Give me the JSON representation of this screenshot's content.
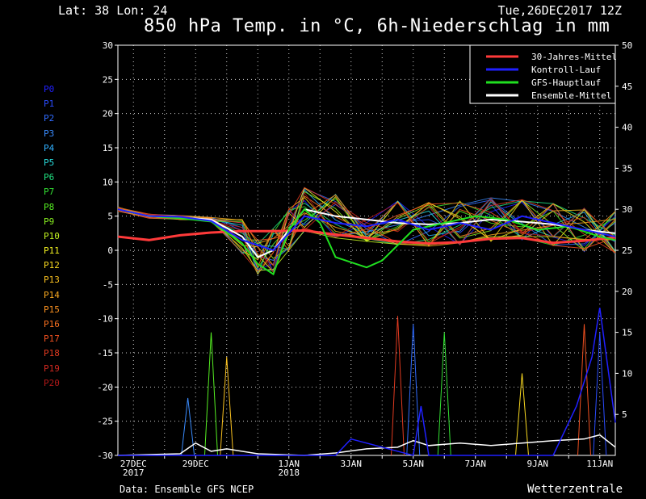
{
  "header": {
    "location": "Lat: 38 Lon: 24",
    "run_time": "Tue,26DEC2017 12Z",
    "title": "850 hPa Temp. in °C, 6h-Niederschlag in mm"
  },
  "footer": {
    "source": "Data: Ensemble GFS NCEP",
    "credit": "Wetterzentrale"
  },
  "members": [
    {
      "label": "P0",
      "color": "#2020ff"
    },
    {
      "label": "P1",
      "color": "#2a4cff"
    },
    {
      "label": "P2",
      "color": "#2f6bff"
    },
    {
      "label": "P3",
      "color": "#3a8cff"
    },
    {
      "label": "P4",
      "color": "#30b0ff"
    },
    {
      "label": "P5",
      "color": "#27d6d6"
    },
    {
      "label": "P6",
      "color": "#20e080"
    },
    {
      "label": "P7",
      "color": "#33e033"
    },
    {
      "label": "P8",
      "color": "#55ee22"
    },
    {
      "label": "P9",
      "color": "#88f020"
    },
    {
      "label": "P10",
      "color": "#c0f020"
    },
    {
      "label": "P11",
      "color": "#f0f020"
    },
    {
      "label": "P12",
      "color": "#f8d820"
    },
    {
      "label": "P13",
      "color": "#f8c020"
    },
    {
      "label": "P14",
      "color": "#f8a820"
    },
    {
      "label": "P15",
      "color": "#f89020"
    },
    {
      "label": "P16",
      "color": "#f87020"
    },
    {
      "label": "P17",
      "color": "#f05020"
    },
    {
      "label": "P18",
      "color": "#e03a20"
    },
    {
      "label": "P19",
      "color": "#d02820"
    },
    {
      "label": "P20",
      "color": "#b01818"
    }
  ],
  "chart_data": {
    "type": "line",
    "x_tick_labels": [
      {
        "date": "2017-12-27",
        "label": "27DEC",
        "sub": "2017"
      },
      {
        "date": "2017-12-29",
        "label": "29DEC",
        "sub": ""
      },
      {
        "date": "2018-01-01",
        "label": "1JAN",
        "sub": "2018"
      },
      {
        "date": "2018-01-03",
        "label": "3JAN",
        "sub": ""
      },
      {
        "date": "2018-01-05",
        "label": "5JAN",
        "sub": ""
      },
      {
        "date": "2018-01-07",
        "label": "7JAN",
        "sub": ""
      },
      {
        "date": "2018-01-09",
        "label": "9JAN",
        "sub": ""
      },
      {
        "date": "2018-01-11",
        "label": "11JAN",
        "sub": ""
      }
    ],
    "xlim": [
      "2017-12-26T12:00",
      "2018-01-11T12:00"
    ],
    "y_left": {
      "ylim": [
        -30,
        30
      ],
      "ticks": [
        30,
        25,
        20,
        15,
        10,
        5,
        0,
        -5,
        -10,
        -15,
        -20,
        -25,
        -30
      ]
    },
    "y_right": {
      "ylim": [
        0,
        50
      ],
      "ticks": [
        50,
        45,
        40,
        35,
        30,
        25,
        20,
        15,
        10,
        5
      ]
    },
    "grid": "dotted",
    "legend_position": "top-right",
    "legend": [
      {
        "label": "30-Jahres-Mittel",
        "color": "#ff3a3a"
      },
      {
        "label": "Kontroll-Lauf",
        "color": "#2020ff"
      },
      {
        "label": "GFS-Hauptlauf",
        "color": "#20e020"
      },
      {
        "label": "Ensemble-Mittel",
        "color": "#ffffff"
      }
    ],
    "series": [
      {
        "name": "30-Jahres-Mittel",
        "axis": "left",
        "color": "#ff3a3a",
        "x": [
          "2017-12-26T12:00",
          "2017-12-27T12:00",
          "2017-12-28T12:00",
          "2017-12-29T12:00",
          "2017-12-30T12:00",
          "2017-12-31T12:00",
          "2018-01-01T12:00",
          "2018-01-02T12:00",
          "2018-01-03T12:00",
          "2018-01-04T12:00",
          "2018-01-05T12:00",
          "2018-01-06T12:00",
          "2018-01-07T12:00",
          "2018-01-08T12:00",
          "2018-01-09T12:00",
          "2018-01-10T12:00",
          "2018-01-11T12:00"
        ],
        "values": [
          2,
          1.5,
          2.2,
          2.6,
          2.8,
          2.8,
          2.9,
          2.3,
          1.8,
          1.3,
          1.0,
          1.2,
          1.7,
          1.8,
          1.1,
          1.4,
          1.9
        ]
      },
      {
        "name": "Ensemble-Mittel",
        "axis": "left",
        "color": "#ffffff",
        "x": [
          "2017-12-26T12:00",
          "2017-12-27T12:00",
          "2017-12-28T12:00",
          "2017-12-29T12:00",
          "2017-12-30T12:00",
          "2017-12-31T00:00",
          "2017-12-31T12:00",
          "2018-01-01T00:00",
          "2018-01-01T12:00",
          "2018-01-02T12:00",
          "2018-01-03T12:00",
          "2018-01-04T12:00",
          "2018-01-05T12:00",
          "2018-01-06T12:00",
          "2018-01-07T12:00",
          "2018-01-08T12:00",
          "2018-01-09T12:00",
          "2018-01-10T12:00",
          "2018-01-11T12:00"
        ],
        "values": [
          6,
          5,
          4.8,
          4.5,
          2,
          -1,
          0,
          3,
          6,
          5,
          4.5,
          4,
          3.8,
          4,
          4.5,
          4.2,
          3.8,
          3,
          2.5
        ]
      },
      {
        "name": "GFS-Hauptlauf",
        "axis": "left",
        "color": "#20e020",
        "x": [
          "2017-12-26T12:00",
          "2017-12-27T12:00",
          "2017-12-28T12:00",
          "2017-12-29T12:00",
          "2017-12-30T12:00",
          "2017-12-31T00:00",
          "2017-12-31T12:00",
          "2018-01-01T00:00",
          "2018-01-01T12:00",
          "2018-01-02T00:00",
          "2018-01-02T12:00",
          "2018-01-03T12:00",
          "2018-01-04T00:00",
          "2018-01-05T00:00",
          "2018-01-06T00:00",
          "2018-01-07T00:00",
          "2018-01-08T00:00",
          "2018-01-09T00:00",
          "2018-01-10T00:00",
          "2018-01-11T00:00",
          "2018-01-11T12:00"
        ],
        "values": [
          6,
          5,
          4.7,
          4.2,
          1,
          -2,
          -3.5,
          3,
          6,
          4,
          -1,
          -2.5,
          -1.5,
          3,
          4,
          5,
          4.5,
          3,
          3.5,
          2,
          1.5
        ]
      },
      {
        "name": "Kontroll-Lauf",
        "axis": "left",
        "color": "#2020ff",
        "x": [
          "2017-12-26T12:00",
          "2017-12-27T12:00",
          "2017-12-28T12:00",
          "2017-12-29T12:00",
          "2017-12-30T12:00",
          "2017-12-31T12:00",
          "2018-01-01T12:00",
          "2018-01-02T12:00",
          "2018-01-03T12:00",
          "2018-01-04T12:00",
          "2018-01-05T12:00",
          "2018-01-06T12:00",
          "2018-01-07T12:00",
          "2018-01-08T12:00",
          "2018-01-09T12:00",
          "2018-01-10T12:00",
          "2018-01-11T12:00"
        ],
        "values": [
          6,
          5,
          4.9,
          4.3,
          1.5,
          0,
          5,
          4,
          3.5,
          4.5,
          3,
          4,
          3,
          5,
          4,
          3,
          2
        ]
      },
      {
        "name": "Ensemble-Mittel Niederschlag",
        "axis": "right",
        "color": "#ffffff",
        "x": [
          "2017-12-26T12:00",
          "2017-12-28T12:00",
          "2017-12-29T00:00",
          "2017-12-29T12:00",
          "2017-12-30T00:00",
          "2017-12-31T00:00",
          "2018-01-01T12:00",
          "2018-01-02T12:00",
          "2018-01-03T12:00",
          "2018-01-04T12:00",
          "2018-01-05T00:00",
          "2018-01-05T12:00",
          "2018-01-06T12:00",
          "2018-01-07T12:00",
          "2018-01-08T12:00",
          "2018-01-09T12:00",
          "2018-01-10T12:00",
          "2018-01-11T00:00",
          "2018-01-11T12:00"
        ],
        "values": [
          0,
          0.2,
          1.5,
          0.5,
          0.8,
          0.2,
          0,
          0.3,
          0.8,
          1,
          1.8,
          1.2,
          1.5,
          1.2,
          1.5,
          1.8,
          2,
          2.5,
          1
        ]
      },
      {
        "name": "Kontroll-Lauf Niederschlag",
        "axis": "right",
        "color": "#2020ff",
        "x": [
          "2017-12-26T12:00",
          "2018-01-02T12:00",
          "2018-01-03T00:00",
          "2018-01-05T00:00",
          "2018-01-05T06:00",
          "2018-01-05T12:00",
          "2018-01-09T12:00",
          "2018-01-10T06:00",
          "2018-01-10T18:00",
          "2018-01-11T00:00",
          "2018-01-11T12:00"
        ],
        "values": [
          0,
          0,
          2,
          0,
          6,
          0,
          0,
          6,
          12,
          18,
          4
        ]
      }
    ],
    "precip_spikes": [
      {
        "x": "2017-12-28T18:00",
        "value": 7
      },
      {
        "x": "2017-12-29T12:00",
        "value": 15
      },
      {
        "x": "2017-12-30T00:00",
        "value": 12
      },
      {
        "x": "2018-01-04T12:00",
        "value": 17
      },
      {
        "x": "2018-01-05T00:00",
        "value": 16
      },
      {
        "x": "2018-01-06T00:00",
        "value": 15
      },
      {
        "x": "2018-01-08T12:00",
        "value": 10
      },
      {
        "x": "2018-01-10T12:00",
        "value": 16
      },
      {
        "x": "2018-01-11T00:00",
        "value": 15
      }
    ]
  }
}
